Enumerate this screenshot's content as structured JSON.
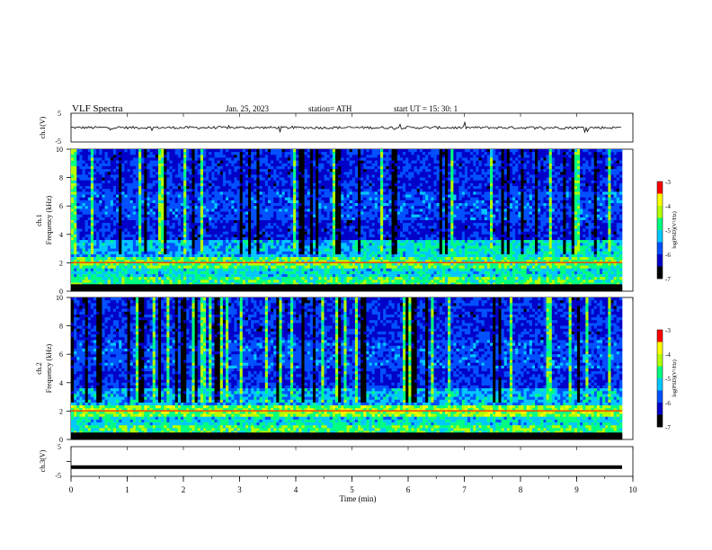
{
  "header": {
    "title": "VLF  Spectra",
    "date": "Jan. 25, 2023",
    "station": "station= ATH",
    "start": "start  UT  =   15: 30: 1"
  },
  "colors": {
    "axis": "#000000",
    "colormap": [
      "#000000",
      "#0000c8",
      "#0050ff",
      "#00c8ff",
      "#00ff80",
      "#b4ff00",
      "#ffff00",
      "#ff0000",
      "#ffffff"
    ]
  },
  "chart_data": [
    {
      "type": "line",
      "panel": "ch1-waveform",
      "ylabel": "ch.1(V)",
      "ylim": [
        -5,
        5
      ],
      "yticks": [
        "5",
        "-5"
      ],
      "xlim": [
        0,
        10
      ],
      "baseline_value": 0,
      "description_values": "noisy broadband waveform around 0 V with spikes"
    },
    {
      "type": "heatmap",
      "panel": "ch1-spectrogram",
      "ylabel_top": "ch.1",
      "ylabel": "Frequency  (kHz)",
      "ylim": [
        0,
        10
      ],
      "yticks": [
        "0",
        "2",
        "4",
        "6",
        "8",
        "10"
      ],
      "xlim": [
        0,
        9.8
      ],
      "colorbar": {
        "label": "log(PSD)(V²/Hz)",
        "ticks": [
          "-3",
          "-4",
          "-5",
          "-6",
          "-7"
        ],
        "range": [
          -7,
          -3
        ]
      }
    },
    {
      "type": "heatmap",
      "panel": "ch2-spectrogram",
      "ylabel_top": "ch.2",
      "ylabel": "Frequency  (kHz)",
      "ylim": [
        0,
        10
      ],
      "yticks": [
        "0",
        "2",
        "4",
        "6",
        "8",
        "10"
      ],
      "xlim": [
        0,
        9.8
      ],
      "colorbar": {
        "label": "log(PSD)(V²/Hz)",
        "ticks": [
          "-3",
          "-4",
          "-5",
          "-6",
          "-7"
        ],
        "range": [
          -7,
          -3
        ]
      }
    },
    {
      "type": "line",
      "panel": "ch3-waveform",
      "ylabel": "ch.3(V)",
      "ylim": [
        -5,
        5
      ],
      "yticks": [
        "5",
        "0",
        "-5"
      ],
      "xlim": [
        0,
        9.8
      ],
      "baseline_value": -1.9
    }
  ],
  "xaxis": {
    "label": "Time  (min)",
    "ticks": [
      "0",
      "1",
      "2",
      "3",
      "4",
      "5",
      "6",
      "7",
      "8",
      "9",
      "10"
    ],
    "range": [
      0,
      10
    ]
  }
}
